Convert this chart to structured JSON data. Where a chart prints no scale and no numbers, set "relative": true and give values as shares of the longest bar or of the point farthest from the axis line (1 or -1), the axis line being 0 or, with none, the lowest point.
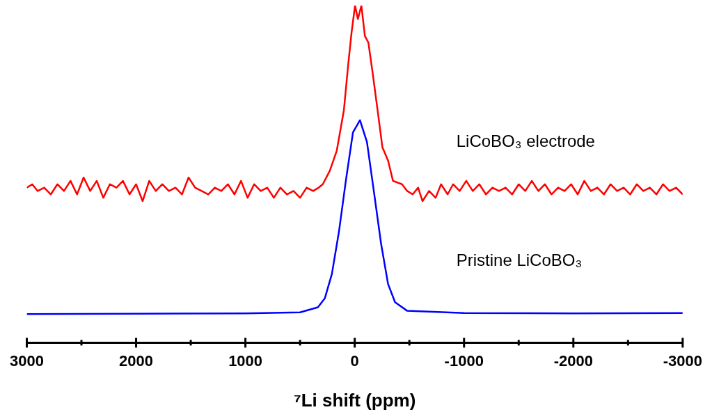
{
  "chart_data": {
    "type": "line",
    "relative": true,
    "xlabel": "⁷Li shift (ppm)",
    "xlim": [
      3000,
      -3000
    ],
    "xticks": [
      3000,
      {
        "value": 2500,
        "label": null
      },
      2000,
      {
        "value": 1500,
        "label": null
      },
      1000,
      {
        "value": 500,
        "label": null
      },
      0,
      {
        "value": -500,
        "label": null
      },
      -1000,
      {
        "value": -1500,
        "label": null
      },
      -2000,
      {
        "value": -2500,
        "label": null
      },
      -3000
    ],
    "tick_labels": "x",
    "grid": false,
    "legend": false,
    "marker": "none",
    "line_style": "solid",
    "series": [
      {
        "name": "LiCoBO₃ electrode",
        "color": "#ff0000",
        "x": [
          3000,
          2950,
          2900,
          2840,
          2780,
          2720,
          2660,
          2600,
          2540,
          2480,
          2420,
          2360,
          2300,
          2240,
          2180,
          2120,
          2060,
          2000,
          1940,
          1880,
          1820,
          1760,
          1700,
          1640,
          1580,
          1520,
          1460,
          1400,
          1340,
          1280,
          1220,
          1160,
          1100,
          1040,
          980,
          920,
          860,
          800,
          740,
          680,
          620,
          560,
          500,
          440,
          380,
          330,
          292,
          228,
          164,
          99,
          61,
          29,
          -3,
          -29,
          -61,
          -93,
          -125,
          -164,
          -209,
          -253,
          -305,
          -350,
          -433,
          -480,
          -530,
          -580,
          -620,
          -680,
          -740,
          -790,
          -850,
          -900,
          -960,
          -1020,
          -1080,
          -1140,
          -1200,
          -1260,
          -1320,
          -1380,
          -1440,
          -1500,
          -1560,
          -1620,
          -1680,
          -1740,
          -1800,
          -1860,
          -1920,
          -1980,
          -2040,
          -2100,
          -2160,
          -2220,
          -2280,
          -2340,
          -2400,
          -2460,
          -2520,
          -2580,
          -2640,
          -2700,
          -2760,
          -2820,
          -2880,
          -2940,
          -3000
        ],
        "values": [
          0.46,
          0.47,
          0.45,
          0.46,
          0.44,
          0.47,
          0.45,
          0.48,
          0.44,
          0.49,
          0.45,
          0.48,
          0.43,
          0.47,
          0.46,
          0.48,
          0.44,
          0.47,
          0.42,
          0.48,
          0.45,
          0.47,
          0.45,
          0.46,
          0.44,
          0.49,
          0.46,
          0.45,
          0.44,
          0.46,
          0.45,
          0.47,
          0.44,
          0.48,
          0.43,
          0.47,
          0.45,
          0.46,
          0.43,
          0.46,
          0.44,
          0.45,
          0.43,
          0.46,
          0.45,
          0.46,
          0.47,
          0.51,
          0.57,
          0.69,
          0.82,
          0.92,
          1.0,
          0.96,
          1.0,
          0.91,
          0.89,
          0.8,
          0.69,
          0.58,
          0.54,
          0.48,
          0.47,
          0.45,
          0.44,
          0.46,
          0.42,
          0.45,
          0.43,
          0.47,
          0.44,
          0.47,
          0.45,
          0.48,
          0.45,
          0.47,
          0.44,
          0.46,
          0.45,
          0.46,
          0.44,
          0.47,
          0.45,
          0.48,
          0.45,
          0.47,
          0.44,
          0.46,
          0.45,
          0.47,
          0.44,
          0.48,
          0.45,
          0.46,
          0.44,
          0.47,
          0.45,
          0.46,
          0.44,
          0.47,
          0.45,
          0.46,
          0.44,
          0.47,
          0.45,
          0.46,
          0.44
        ]
      },
      {
        "name": "Pristine LiCoBO₃",
        "color": "#0000ff",
        "x": [
          3000,
          2000,
          1000,
          500,
          337,
          273,
          209,
          144,
          80,
          16,
          -48,
          -112,
          -176,
          -241,
          -305,
          -369,
          -478,
          -1000,
          -2000,
          -3000
        ],
        "values": [
          0.085,
          0.086,
          0.087,
          0.09,
          0.105,
          0.132,
          0.204,
          0.33,
          0.483,
          0.624,
          0.66,
          0.595,
          0.447,
          0.294,
          0.174,
          0.12,
          0.095,
          0.088,
          0.087,
          0.088
        ]
      }
    ]
  }
}
